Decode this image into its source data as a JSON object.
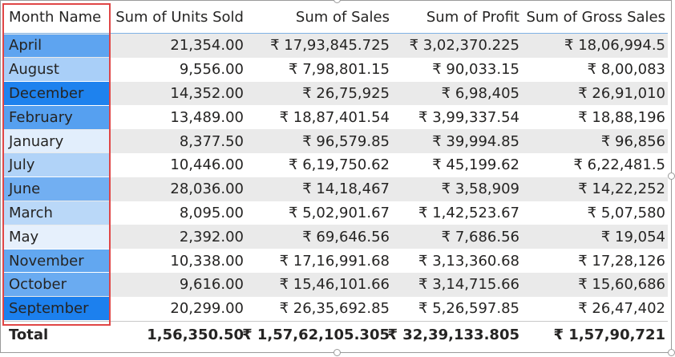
{
  "table": {
    "headers": [
      "Month Name",
      "Sum of Units Sold",
      "Sum of Sales",
      "Sum of Profit",
      "Sum of Gross Sales"
    ],
    "rows": [
      {
        "month": "April",
        "units": "21,354.00",
        "sales": "₹ 17,93,845.725",
        "profit": "₹ 3,02,370.225",
        "gross": "₹ 18,06,994.5",
        "color": "#5ea4f0"
      },
      {
        "month": "August",
        "units": "9,556.00",
        "sales": "₹ 7,98,801.15",
        "profit": "₹ 90,033.15",
        "gross": "₹ 8,00,083",
        "color": "#a9cff8"
      },
      {
        "month": "December",
        "units": "14,352.00",
        "sales": "₹ 26,75,925",
        "profit": "₹ 6,98,405",
        "gross": "₹ 26,91,010",
        "color": "#1e82ee"
      },
      {
        "month": "February",
        "units": "13,489.00",
        "sales": "₹ 18,87,401.54",
        "profit": "₹ 3,99,337.54",
        "gross": "₹ 18,88,196",
        "color": "#56a0f0"
      },
      {
        "month": "January",
        "units": "8,377.50",
        "sales": "₹ 96,579.85",
        "profit": "₹ 39,994.85",
        "gross": "₹ 96,856",
        "color": "#e2eefc"
      },
      {
        "month": "July",
        "units": "10,446.00",
        "sales": "₹ 6,19,750.62",
        "profit": "₹ 45,199.62",
        "gross": "₹ 6,22,481.5",
        "color": "#b1d3f8"
      },
      {
        "month": "June",
        "units": "28,036.00",
        "sales": "₹ 14,18,467",
        "profit": "₹ 3,58,909",
        "gross": "₹ 14,22,252",
        "color": "#72aff2"
      },
      {
        "month": "March",
        "units": "8,095.00",
        "sales": "₹ 5,02,901.67",
        "profit": "₹ 1,42,523.67",
        "gross": "₹ 5,07,580",
        "color": "#bad8f8"
      },
      {
        "month": "May",
        "units": "2,392.00",
        "sales": "₹ 69,646.56",
        "profit": "₹ 7,686.56",
        "gross": "₹ 19,054",
        "color": "#e6f0fc"
      },
      {
        "month": "November",
        "units": "10,338.00",
        "sales": "₹ 17,16,991.68",
        "profit": "₹ 3,13,360.68",
        "gross": "₹ 17,28,126",
        "color": "#62a7f0"
      },
      {
        "month": "October",
        "units": "9,616.00",
        "sales": "₹ 15,46,101.66",
        "profit": "₹ 3,14,715.66",
        "gross": "₹ 15,60,686",
        "color": "#6aabf1"
      },
      {
        "month": "September",
        "units": "20,299.00",
        "sales": "₹ 26,35,692.85",
        "profit": "₹ 5,26,597.85",
        "gross": "₹ 26,47,402",
        "color": "#1c80ee"
      }
    ],
    "total": {
      "label": "Total",
      "units": "1,56,350.50",
      "sales": "₹ 1,57,62,105.305",
      "profit": "₹ 32,39,133.805",
      "gross": "₹ 1,57,90,721"
    }
  },
  "colors": {
    "highlight_border": "#e04646",
    "header_divider": "#7fb2e5",
    "alt_row": "#eaeaea"
  }
}
